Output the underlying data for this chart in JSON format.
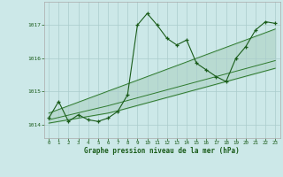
{
  "title": "Graphe pression niveau de la mer (hPa)",
  "bg_color": "#cce8e8",
  "grid_color": "#aacccc",
  "line_color": "#1a5c1a",
  "band_color": "#2e7a2e",
  "xlim": [
    -0.5,
    23.5
  ],
  "ylim": [
    1013.6,
    1017.7
  ],
  "yticks": [
    1014,
    1015,
    1016,
    1017
  ],
  "xticks": [
    0,
    1,
    2,
    3,
    4,
    5,
    6,
    7,
    8,
    9,
    10,
    11,
    12,
    13,
    14,
    15,
    16,
    17,
    18,
    19,
    20,
    21,
    22,
    23
  ],
  "pressure_data": [
    1014.2,
    1014.7,
    1014.1,
    1014.3,
    1014.15,
    1014.1,
    1014.2,
    1014.4,
    1014.9,
    1017.0,
    1017.35,
    1017.0,
    1016.6,
    1016.4,
    1016.55,
    1015.85,
    1015.65,
    1015.45,
    1015.3,
    1016.0,
    1016.35,
    1016.85,
    1017.1,
    1017.05
  ],
  "band_lower": [
    1014.05,
    1014.1,
    1014.15,
    1014.2,
    1014.25,
    1014.3,
    1014.35,
    1014.42,
    1014.5,
    1014.58,
    1014.66,
    1014.74,
    1014.82,
    1014.9,
    1014.98,
    1015.06,
    1015.14,
    1015.22,
    1015.3,
    1015.38,
    1015.46,
    1015.54,
    1015.62,
    1015.7
  ],
  "band_mid": [
    1014.15,
    1014.22,
    1014.29,
    1014.36,
    1014.43,
    1014.5,
    1014.57,
    1014.65,
    1014.73,
    1014.81,
    1014.89,
    1014.97,
    1015.05,
    1015.13,
    1015.21,
    1015.29,
    1015.37,
    1015.45,
    1015.53,
    1015.61,
    1015.69,
    1015.77,
    1015.85,
    1015.93
  ],
  "band_upper": [
    1014.35,
    1014.46,
    1014.57,
    1014.68,
    1014.79,
    1014.9,
    1015.01,
    1015.12,
    1015.23,
    1015.34,
    1015.45,
    1015.56,
    1015.67,
    1015.78,
    1015.89,
    1016.0,
    1016.11,
    1016.22,
    1016.33,
    1016.44,
    1016.55,
    1016.66,
    1016.77,
    1016.88
  ]
}
